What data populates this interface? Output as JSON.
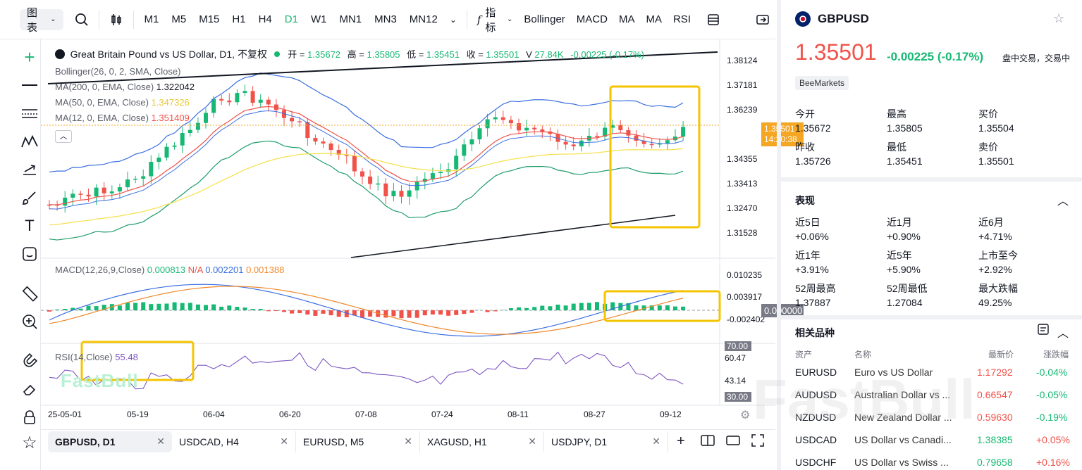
{
  "toolbar": {
    "select": "图表",
    "timeframes": [
      "M1",
      "M5",
      "M15",
      "H1",
      "H4",
      "D1",
      "W1",
      "MN1",
      "MN3",
      "MN12"
    ],
    "active": "D1",
    "indicators_label": "指标",
    "indicators": [
      "Bollinger",
      "MACD",
      "MA",
      "MA",
      "RSI"
    ]
  },
  "legend": {
    "title": "Great Britain Pound vs US Dollar, D1, 不复权",
    "open_label": "开 =",
    "open": "1.35672",
    "high_label": "高 =",
    "high": "1.35805",
    "low_label": "低 =",
    "low": "1.35451",
    "close_label": "收 =",
    "close": "1.35501",
    "vol_label": "V",
    "vol": "27.84K",
    "chg": "-0.00225 (-0.17%)",
    "boll": "Bollinger(26, 0, 2, SMA, Close)",
    "ma200": "MA(200, 0, EMA, Close)",
    "ma200_val": "1.322042",
    "ma50": "MA(50, 0, EMA, Close)",
    "ma50_val": "1.347326",
    "ma12": "MA(12, 0, EMA, Close)",
    "ma12_val": "1.351409",
    "macd": "MACD(12,26,9,Close)",
    "macd_v1": "0.000813",
    "macd_v2": "N/A",
    "macd_v3": "0.002201",
    "macd_v4": "0.001388",
    "rsi": "RSI(14,Close)",
    "rsi_val": "55.48"
  },
  "price_axis": [
    "1.38124",
    "1.37181",
    "1.36239",
    "1.35501",
    "1.34355",
    "1.33413",
    "1.32470",
    "1.31528"
  ],
  "price_badge": {
    "price": "1.35501",
    "time": "14:20:38"
  },
  "macd_axis": [
    "0.010235",
    "0.003917",
    "0.000000",
    "-0.002402"
  ],
  "rsi_axis": [
    "70.00",
    "60.47",
    "43.14",
    "30.00"
  ],
  "date_axis": [
    "25-05-01",
    "05-19",
    "06-04",
    "06-20",
    "07-08",
    "07-24",
    "08-11",
    "08-27",
    "09-12"
  ],
  "watermark": "FastBull",
  "tabs": [
    {
      "label": "GBPUSD, D1"
    },
    {
      "label": "USDCAD, H4"
    },
    {
      "label": "EURUSD, M5"
    },
    {
      "label": "XAGUSD, H1"
    },
    {
      "label": "USDJPY, D1"
    }
  ],
  "panel": {
    "symbol": "GBPUSD",
    "price": "1.35501",
    "change": "-0.00225 (-0.17%)",
    "status": "盘中交易，交易中",
    "source": "BeeMarkets",
    "stats": [
      {
        "k": "今开",
        "v": "1.35672"
      },
      {
        "k": "最高",
        "v": "1.35805"
      },
      {
        "k": "买价",
        "v": "1.35504"
      },
      {
        "k": "昨收",
        "v": "1.35726"
      },
      {
        "k": "最低",
        "v": "1.35451"
      },
      {
        "k": "卖价",
        "v": "1.35501"
      }
    ],
    "perf_title": "表现",
    "perf": [
      {
        "k": "近5日",
        "v": "+0.06%"
      },
      {
        "k": "近1月",
        "v": "+0.90%"
      },
      {
        "k": "近6月",
        "v": "+4.71%"
      },
      {
        "k": "近1年",
        "v": "+3.91%"
      },
      {
        "k": "近5年",
        "v": "+5.90%"
      },
      {
        "k": "上市至今",
        "v": "+2.92%"
      },
      {
        "k": "52周最高",
        "v": "1.37887"
      },
      {
        "k": "52周最低",
        "v": "1.27084"
      },
      {
        "k": "最大跌幅",
        "v": "49.25%"
      }
    ],
    "rel_title": "相关品种",
    "rel_headers": [
      "资产",
      "名称",
      "最新价",
      "涨跌幅"
    ],
    "related": [
      {
        "asset": "EURUSD",
        "name": "Euro vs US Dollar",
        "price": "1.17292",
        "chg": "-0.04%"
      },
      {
        "asset": "AUDUSD",
        "name": "Australian Dollar vs ...",
        "price": "0.66547",
        "chg": "-0.05%"
      },
      {
        "asset": "NZDUSD",
        "name": "New Zealand Dollar ...",
        "price": "0.59630",
        "chg": "-0.19%"
      },
      {
        "asset": "USDCAD",
        "name": "US Dollar vs Canadi...",
        "price": "1.38385",
        "chg": "+0.05%"
      },
      {
        "asset": "USDCHF",
        "name": "US Dollar vs Swiss ...",
        "price": "0.79658",
        "chg": "+0.16%"
      }
    ]
  }
}
